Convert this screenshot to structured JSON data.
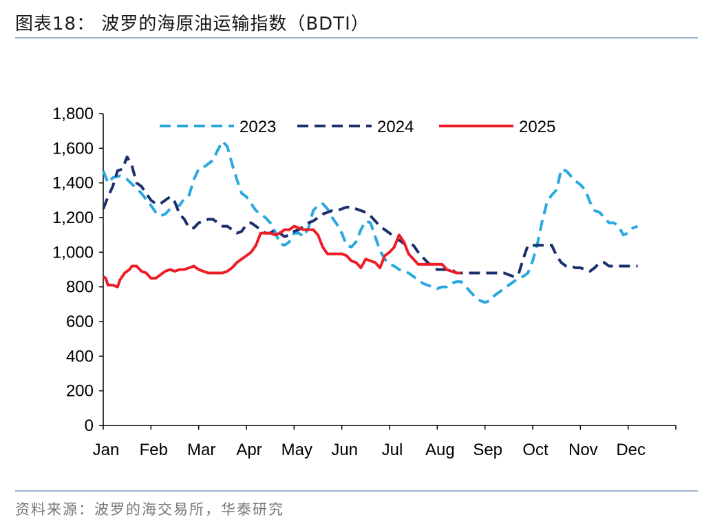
{
  "header": {
    "title": "图表18：  波罗的海原油运输指数（BDTI）"
  },
  "footer": {
    "source": "资料来源：波罗的海交易所，华泰研究"
  },
  "chart_data": {
    "type": "line",
    "title": "",
    "xlabel": "",
    "ylabel": "",
    "ylim": [
      0,
      1800
    ],
    "yticks": [
      "0",
      "200",
      "400",
      "600",
      "800",
      "1,000",
      "1,200",
      "1,400",
      "1,600",
      "1,800"
    ],
    "categories": [
      "Jan",
      "Feb",
      "Mar",
      "Apr",
      "May",
      "Jun",
      "Jul",
      "Aug",
      "Sep",
      "Oct",
      "Nov",
      "Dec"
    ],
    "grid": false,
    "legend_position": "top",
    "series": [
      {
        "name": "2023",
        "color": "#29a8e0",
        "dash": "dashed",
        "points": [
          [
            0.0,
            1470
          ],
          [
            0.1,
            1400
          ],
          [
            0.2,
            1430
          ],
          [
            0.35,
            1440
          ],
          [
            0.5,
            1420
          ],
          [
            0.65,
            1380
          ],
          [
            0.8,
            1340
          ],
          [
            1.0,
            1270
          ],
          [
            1.1,
            1230
          ],
          [
            1.2,
            1210
          ],
          [
            1.3,
            1220
          ],
          [
            1.4,
            1250
          ],
          [
            1.5,
            1260
          ],
          [
            1.6,
            1270
          ],
          [
            1.7,
            1310
          ],
          [
            1.8,
            1330
          ],
          [
            1.9,
            1420
          ],
          [
            2.0,
            1480
          ],
          [
            2.1,
            1490
          ],
          [
            2.2,
            1510
          ],
          [
            2.3,
            1530
          ],
          [
            2.4,
            1590
          ],
          [
            2.5,
            1640
          ],
          [
            2.6,
            1610
          ],
          [
            2.7,
            1510
          ],
          [
            2.8,
            1420
          ],
          [
            2.9,
            1340
          ],
          [
            3.0,
            1320
          ],
          [
            3.1,
            1280
          ],
          [
            3.2,
            1240
          ],
          [
            3.3,
            1220
          ],
          [
            3.4,
            1200
          ],
          [
            3.5,
            1170
          ],
          [
            3.6,
            1120
          ],
          [
            3.7,
            1050
          ],
          [
            3.8,
            1040
          ],
          [
            3.9,
            1060
          ],
          [
            4.0,
            1110
          ],
          [
            4.1,
            1110
          ],
          [
            4.2,
            1090
          ],
          [
            4.3,
            1140
          ],
          [
            4.4,
            1240
          ],
          [
            4.5,
            1270
          ],
          [
            4.6,
            1280
          ],
          [
            4.7,
            1250
          ],
          [
            4.8,
            1200
          ],
          [
            4.9,
            1160
          ],
          [
            5.0,
            1110
          ],
          [
            5.1,
            1040
          ],
          [
            5.2,
            1030
          ],
          [
            5.3,
            1060
          ],
          [
            5.4,
            1130
          ],
          [
            5.5,
            1180
          ],
          [
            5.6,
            1170
          ],
          [
            5.7,
            1090
          ],
          [
            5.8,
            1010
          ],
          [
            5.9,
            960
          ],
          [
            6.0,
            930
          ],
          [
            6.1,
            920
          ],
          [
            6.2,
            900
          ],
          [
            6.3,
            890
          ],
          [
            6.4,
            880
          ],
          [
            6.5,
            860
          ],
          [
            6.6,
            840
          ],
          [
            6.7,
            820
          ],
          [
            6.8,
            810
          ],
          [
            6.9,
            800
          ],
          [
            7.0,
            790
          ],
          [
            7.1,
            800
          ],
          [
            7.2,
            800
          ],
          [
            7.3,
            820
          ],
          [
            7.4,
            830
          ],
          [
            7.5,
            830
          ],
          [
            7.6,
            800
          ],
          [
            7.7,
            770
          ],
          [
            7.8,
            740
          ],
          [
            7.9,
            720
          ],
          [
            8.0,
            710
          ],
          [
            8.1,
            720
          ],
          [
            8.2,
            750
          ],
          [
            8.3,
            770
          ],
          [
            8.4,
            790
          ],
          [
            8.5,
            810
          ],
          [
            8.6,
            830
          ],
          [
            8.7,
            850
          ],
          [
            8.8,
            860
          ],
          [
            8.9,
            880
          ],
          [
            9.0,
            950
          ],
          [
            9.1,
            1050
          ],
          [
            9.2,
            1180
          ],
          [
            9.3,
            1290
          ],
          [
            9.4,
            1330
          ],
          [
            9.5,
            1360
          ],
          [
            9.6,
            1480
          ],
          [
            9.7,
            1470
          ],
          [
            9.8,
            1440
          ],
          [
            9.9,
            1410
          ],
          [
            10.0,
            1390
          ],
          [
            10.1,
            1360
          ],
          [
            10.2,
            1290
          ],
          [
            10.3,
            1240
          ],
          [
            10.4,
            1230
          ],
          [
            10.5,
            1200
          ],
          [
            10.6,
            1170
          ],
          [
            10.7,
            1170
          ],
          [
            10.8,
            1150
          ],
          [
            10.9,
            1100
          ],
          [
            11.0,
            1110
          ],
          [
            11.1,
            1140
          ],
          [
            11.2,
            1150
          ]
        ]
      },
      {
        "name": "2024",
        "color": "#1a2f6b",
        "dash": "dashed",
        "points": [
          [
            0.0,
            1250
          ],
          [
            0.1,
            1320
          ],
          [
            0.2,
            1380
          ],
          [
            0.3,
            1470
          ],
          [
            0.4,
            1480
          ],
          [
            0.5,
            1550
          ],
          [
            0.6,
            1500
          ],
          [
            0.7,
            1400
          ],
          [
            0.8,
            1380
          ],
          [
            0.9,
            1340
          ],
          [
            1.0,
            1300
          ],
          [
            1.1,
            1280
          ],
          [
            1.2,
            1280
          ],
          [
            1.3,
            1300
          ],
          [
            1.4,
            1320
          ],
          [
            1.5,
            1290
          ],
          [
            1.6,
            1220
          ],
          [
            1.7,
            1190
          ],
          [
            1.8,
            1140
          ],
          [
            1.9,
            1140
          ],
          [
            2.0,
            1170
          ],
          [
            2.1,
            1180
          ],
          [
            2.2,
            1190
          ],
          [
            2.3,
            1190
          ],
          [
            2.4,
            1170
          ],
          [
            2.5,
            1150
          ],
          [
            2.6,
            1150
          ],
          [
            2.7,
            1130
          ],
          [
            2.8,
            1110
          ],
          [
            2.9,
            1120
          ],
          [
            3.0,
            1160
          ],
          [
            3.1,
            1170
          ],
          [
            3.2,
            1150
          ],
          [
            3.3,
            1130
          ],
          [
            3.4,
            1110
          ],
          [
            3.5,
            1110
          ],
          [
            3.6,
            1130
          ],
          [
            3.7,
            1110
          ],
          [
            3.8,
            1090
          ],
          [
            3.9,
            1100
          ],
          [
            4.0,
            1120
          ],
          [
            4.1,
            1130
          ],
          [
            4.2,
            1150
          ],
          [
            4.3,
            1170
          ],
          [
            4.4,
            1180
          ],
          [
            4.5,
            1200
          ],
          [
            4.6,
            1220
          ],
          [
            4.7,
            1230
          ],
          [
            4.8,
            1240
          ],
          [
            4.9,
            1240
          ],
          [
            5.0,
            1250
          ],
          [
            5.1,
            1260
          ],
          [
            5.2,
            1260
          ],
          [
            5.3,
            1250
          ],
          [
            5.4,
            1240
          ],
          [
            5.5,
            1230
          ],
          [
            5.6,
            1210
          ],
          [
            5.7,
            1180
          ],
          [
            5.8,
            1150
          ],
          [
            5.9,
            1130
          ],
          [
            6.0,
            1110
          ],
          [
            6.1,
            1090
          ],
          [
            6.2,
            1070
          ],
          [
            6.3,
            1050
          ],
          [
            6.4,
            1050
          ],
          [
            6.5,
            1040
          ],
          [
            6.6,
            1000
          ],
          [
            6.7,
            970
          ],
          [
            6.8,
            940
          ],
          [
            6.9,
            920
          ],
          [
            7.0,
            900
          ],
          [
            7.1,
            900
          ],
          [
            7.2,
            900
          ],
          [
            7.3,
            900
          ],
          [
            7.4,
            880
          ],
          [
            7.5,
            880
          ],
          [
            7.6,
            880
          ],
          [
            7.7,
            880
          ],
          [
            7.8,
            880
          ],
          [
            7.9,
            880
          ],
          [
            8.0,
            880
          ],
          [
            8.1,
            880
          ],
          [
            8.2,
            880
          ],
          [
            8.3,
            880
          ],
          [
            8.4,
            880
          ],
          [
            8.5,
            870
          ],
          [
            8.6,
            860
          ],
          [
            8.7,
            870
          ],
          [
            8.8,
            960
          ],
          [
            8.9,
            1040
          ],
          [
            9.0,
            1040
          ],
          [
            9.1,
            1040
          ],
          [
            9.2,
            1040
          ],
          [
            9.3,
            1040
          ],
          [
            9.4,
            1040
          ],
          [
            9.5,
            980
          ],
          [
            9.6,
            940
          ],
          [
            9.7,
            920
          ],
          [
            9.8,
            920
          ],
          [
            9.9,
            910
          ],
          [
            10.0,
            910
          ],
          [
            10.1,
            900
          ],
          [
            10.2,
            890
          ],
          [
            10.3,
            910
          ],
          [
            10.4,
            940
          ],
          [
            10.5,
            940
          ],
          [
            10.6,
            920
          ],
          [
            10.7,
            920
          ],
          [
            10.8,
            920
          ],
          [
            10.9,
            920
          ],
          [
            11.0,
            920
          ],
          [
            11.1,
            920
          ],
          [
            11.2,
            920
          ]
        ]
      },
      {
        "name": "2025",
        "color": "#ee1c24",
        "dash": "solid",
        "points": [
          [
            0.0,
            860
          ],
          [
            0.05,
            850
          ],
          [
            0.1,
            810
          ],
          [
            0.2,
            810
          ],
          [
            0.3,
            800
          ],
          [
            0.35,
            840
          ],
          [
            0.45,
            880
          ],
          [
            0.55,
            900
          ],
          [
            0.6,
            920
          ],
          [
            0.7,
            920
          ],
          [
            0.8,
            890
          ],
          [
            0.9,
            880
          ],
          [
            1.0,
            850
          ],
          [
            1.1,
            850
          ],
          [
            1.2,
            870
          ],
          [
            1.3,
            890
          ],
          [
            1.4,
            900
          ],
          [
            1.5,
            890
          ],
          [
            1.6,
            900
          ],
          [
            1.7,
            900
          ],
          [
            1.8,
            910
          ],
          [
            1.9,
            920
          ],
          [
            2.0,
            900
          ],
          [
            2.1,
            890
          ],
          [
            2.2,
            880
          ],
          [
            2.3,
            880
          ],
          [
            2.4,
            880
          ],
          [
            2.5,
            880
          ],
          [
            2.6,
            890
          ],
          [
            2.7,
            910
          ],
          [
            2.8,
            940
          ],
          [
            2.9,
            960
          ],
          [
            3.0,
            980
          ],
          [
            3.1,
            1000
          ],
          [
            3.2,
            1040
          ],
          [
            3.3,
            1110
          ],
          [
            3.4,
            1110
          ],
          [
            3.5,
            1110
          ],
          [
            3.6,
            1100
          ],
          [
            3.7,
            1110
          ],
          [
            3.8,
            1130
          ],
          [
            3.9,
            1130
          ],
          [
            4.0,
            1150
          ],
          [
            4.1,
            1140
          ],
          [
            4.2,
            1130
          ],
          [
            4.3,
            1130
          ],
          [
            4.4,
            1130
          ],
          [
            4.5,
            1100
          ],
          [
            4.6,
            1030
          ],
          [
            4.7,
            990
          ],
          [
            4.8,
            990
          ],
          [
            4.9,
            990
          ],
          [
            5.0,
            990
          ],
          [
            5.1,
            980
          ],
          [
            5.2,
            950
          ],
          [
            5.3,
            940
          ],
          [
            5.4,
            910
          ],
          [
            5.5,
            960
          ],
          [
            5.6,
            950
          ],
          [
            5.7,
            940
          ],
          [
            5.8,
            910
          ],
          [
            5.9,
            980
          ],
          [
            6.0,
            1000
          ],
          [
            6.1,
            1030
          ],
          [
            6.2,
            1100
          ],
          [
            6.3,
            1060
          ],
          [
            6.4,
            990
          ],
          [
            6.5,
            960
          ],
          [
            6.6,
            930
          ],
          [
            6.7,
            930
          ],
          [
            6.8,
            930
          ],
          [
            6.9,
            930
          ],
          [
            7.0,
            930
          ],
          [
            7.1,
            930
          ],
          [
            7.2,
            900
          ],
          [
            7.3,
            890
          ],
          [
            7.4,
            880
          ],
          [
            7.5,
            880
          ]
        ]
      }
    ]
  }
}
